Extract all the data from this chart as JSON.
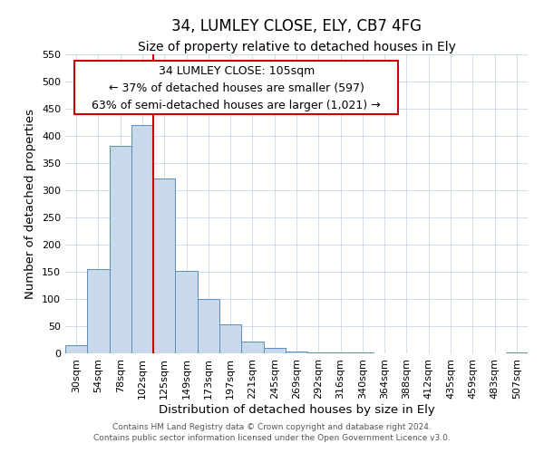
{
  "title": "34, LUMLEY CLOSE, ELY, CB7 4FG",
  "subtitle": "Size of property relative to detached houses in Ely",
  "xlabel": "Distribution of detached houses by size in Ely",
  "ylabel": "Number of detached properties",
  "bar_labels": [
    "30sqm",
    "54sqm",
    "78sqm",
    "102sqm",
    "125sqm",
    "149sqm",
    "173sqm",
    "197sqm",
    "221sqm",
    "245sqm",
    "269sqm",
    "292sqm",
    "316sqm",
    "340sqm",
    "364sqm",
    "388sqm",
    "412sqm",
    "435sqm",
    "459sqm",
    "483sqm",
    "507sqm"
  ],
  "bar_heights": [
    15,
    155,
    382,
    420,
    322,
    152,
    100,
    54,
    22,
    10,
    4,
    2,
    1,
    1,
    0,
    0,
    0,
    0,
    0,
    0,
    1
  ],
  "bar_color": "#c9d9ec",
  "bar_edge_color": "#5b8db8",
  "vline_x_index": 3,
  "vline_color": "#cc0000",
  "annotation_line1": "34 LUMLEY CLOSE: 105sqm",
  "annotation_line2": "← 37% of detached houses are smaller (597)",
  "annotation_line3": "63% of semi-detached houses are larger (1,021) →",
  "box_edge_color": "#cc0000",
  "ylim": [
    0,
    550
  ],
  "yticks": [
    0,
    50,
    100,
    150,
    200,
    250,
    300,
    350,
    400,
    450,
    500,
    550
  ],
  "footnote_line1": "Contains HM Land Registry data © Crown copyright and database right 2024.",
  "footnote_line2": "Contains public sector information licensed under the Open Government Licence v3.0.",
  "title_fontsize": 12,
  "subtitle_fontsize": 10,
  "axis_label_fontsize": 9.5,
  "tick_fontsize": 8,
  "annotation_fontsize": 9,
  "footnote_fontsize": 6.5
}
